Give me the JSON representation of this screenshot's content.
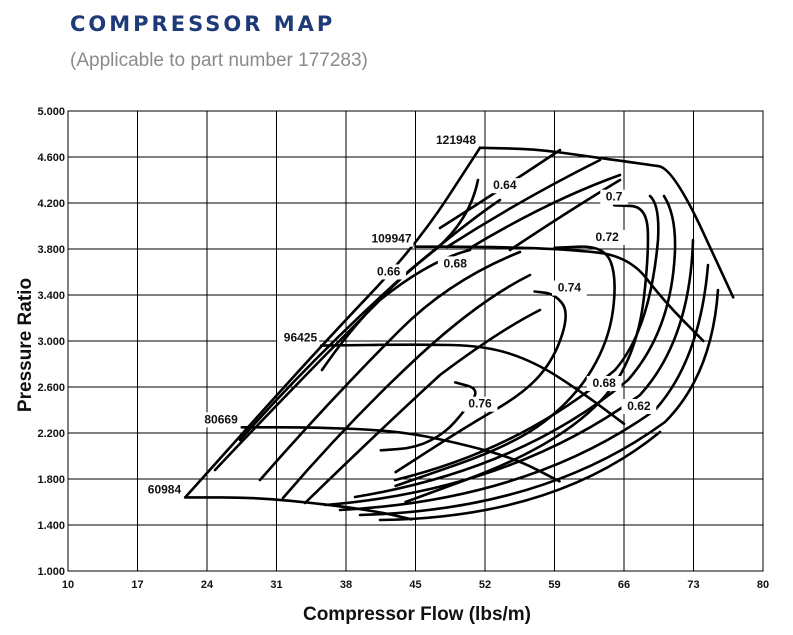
{
  "header": {
    "title": "COMPRESSOR MAP",
    "subtitle": "(Applicable to part number 177283)"
  },
  "chart_data": {
    "type": "line",
    "title": "COMPRESSOR MAP",
    "subtitle": "(Applicable to part number 177283)",
    "xlabel": "Compressor Flow (lbs/m)",
    "ylabel": "Pressure Ratio",
    "xlim": [
      10,
      80
    ],
    "ylim": [
      1.0,
      5.0
    ],
    "x_ticks": [
      "10",
      "17",
      "24",
      "31",
      "38",
      "45",
      "52",
      "59",
      "66",
      "73",
      "80"
    ],
    "y_ticks": [
      "1.000",
      "1.400",
      "1.800",
      "2.200",
      "2.600",
      "3.000",
      "3.400",
      "3.800",
      "4.200",
      "4.600",
      "5.000"
    ],
    "grid": true,
    "speed_lines": [
      {
        "label": "60984",
        "points": [
          [
            21.8,
            1.64
          ],
          [
            29,
            1.64
          ],
          [
            36,
            1.58
          ],
          [
            41,
            1.52
          ],
          [
            44.6,
            1.45
          ]
        ]
      },
      {
        "label": "80669",
        "points": [
          [
            27.5,
            2.25
          ],
          [
            35,
            2.25
          ],
          [
            43,
            2.22
          ],
          [
            49,
            2.12
          ],
          [
            55,
            1.98
          ],
          [
            59.5,
            1.78
          ]
        ]
      },
      {
        "label": "96425",
        "points": [
          [
            35.5,
            2.96
          ],
          [
            45,
            2.97
          ],
          [
            52,
            2.96
          ],
          [
            57,
            2.82
          ],
          [
            62,
            2.54
          ],
          [
            66,
            2.28
          ]
        ]
      },
      {
        "label": "109947",
        "points": [
          [
            45,
            3.82
          ],
          [
            52,
            3.82
          ],
          [
            60,
            3.8
          ],
          [
            66.5,
            3.74
          ],
          [
            70,
            3.35
          ],
          [
            74,
            3.0
          ]
        ]
      },
      {
        "label": "121948",
        "points": [
          [
            51.5,
            4.68
          ],
          [
            57,
            4.67
          ],
          [
            62,
            4.61
          ],
          [
            68,
            4.54
          ],
          [
            71,
            4.5
          ],
          [
            77,
            3.38
          ]
        ]
      }
    ],
    "surge_line": {
      "points": [
        [
          21.8,
          1.64
        ],
        [
          35.5,
          2.96
        ],
        [
          45,
          3.82
        ],
        [
          51.5,
          4.68
        ]
      ]
    },
    "efficiency_islands": [
      {
        "label": "0.76",
        "points": [
          [
            41.5,
            2.05
          ],
          [
            45,
            2.07
          ],
          [
            48,
            2.2
          ],
          [
            50,
            2.4
          ],
          [
            51.5,
            2.58
          ],
          [
            49,
            2.64
          ]
        ]
      },
      {
        "label": "0.74",
        "points": [
          [
            57,
            3.43
          ],
          [
            59,
            3.41
          ],
          [
            60.5,
            3.25
          ],
          [
            59,
            2.85
          ],
          [
            56,
            2.55
          ],
          [
            50,
            2.25
          ],
          [
            43,
            1.86
          ]
        ]
      },
      {
        "label": "0.72",
        "points": [
          [
            59,
            3.81
          ],
          [
            64,
            3.83
          ],
          [
            65.3,
            3.55
          ],
          [
            64.5,
            3.0
          ],
          [
            61,
            2.5
          ],
          [
            55,
            2.1
          ],
          [
            43,
            1.74
          ]
        ]
      },
      {
        "label": "0.7",
        "points": [
          [
            65,
            4.18
          ],
          [
            68.3,
            4.17
          ],
          [
            68.5,
            3.75
          ],
          [
            67.5,
            3.0
          ],
          [
            64,
            2.45
          ],
          [
            56,
            1.98
          ],
          [
            44,
            1.6
          ]
        ]
      }
    ],
    "efficiency_labels": [
      "0.64",
      "0.66",
      "0.68",
      "0.7",
      "0.72",
      "0.74",
      "0.76",
      "0.68",
      "0.62"
    ]
  }
}
